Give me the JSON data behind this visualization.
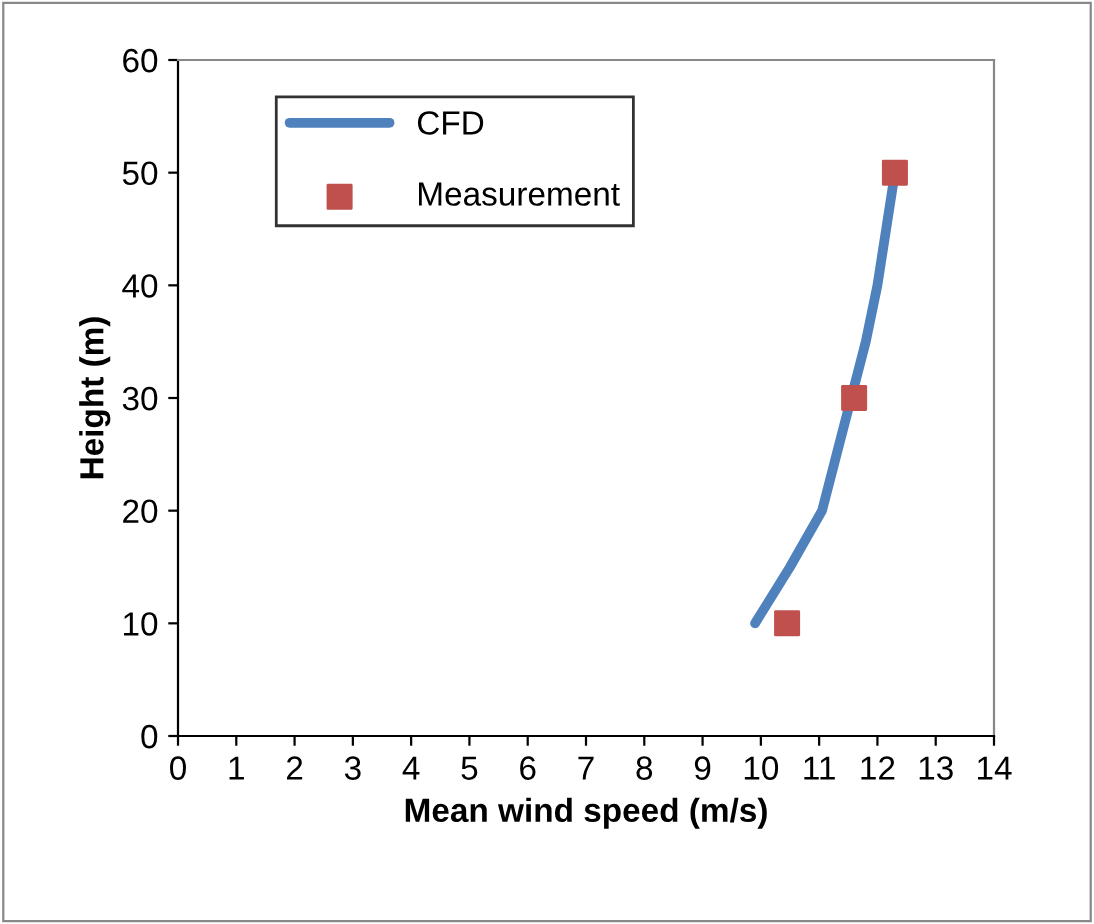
{
  "chart_data": {
    "type": "line",
    "xlabel": "Mean wind speed (m/s)",
    "ylabel": "Height (m)",
    "xlim": [
      0,
      14
    ],
    "xticks": [
      0,
      1,
      2,
      3,
      4,
      5,
      6,
      7,
      8,
      9,
      10,
      11,
      12,
      13,
      14
    ],
    "ylim": [
      0,
      60
    ],
    "yticks": [
      0,
      10,
      20,
      30,
      40,
      50,
      60
    ],
    "grid": false,
    "legend": "top left",
    "series": [
      {
        "name": "CFD",
        "color": "#4f81bd",
        "x": [
          9.9,
          10.5,
          11.05,
          11.3,
          11.55,
          11.8,
          12.0,
          12.15,
          12.3
        ],
        "values": [
          10,
          15,
          20,
          25,
          30,
          35,
          40,
          45,
          50
        ],
        "marker": "none",
        "line_style": "solid"
      },
      {
        "name": "Measurement",
        "type": "scatter",
        "color": "#c0504d",
        "x": [
          10.45,
          11.6,
          12.3
        ],
        "values": [
          10,
          30,
          50
        ],
        "marker": "square"
      }
    ]
  }
}
